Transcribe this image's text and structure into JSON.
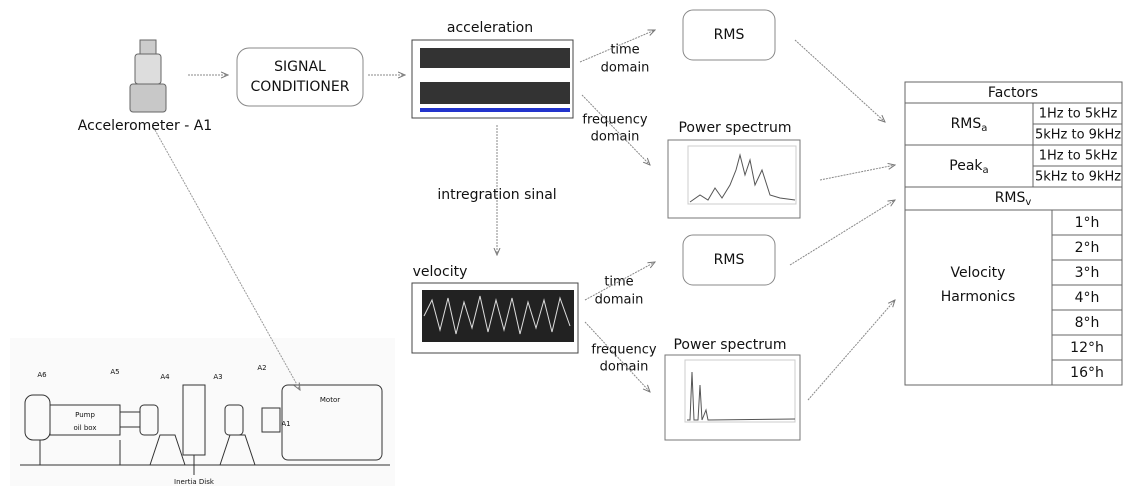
{
  "sensor": {
    "label": "Accelerometer - A1"
  },
  "conditioner": {
    "lines": [
      "SIGNAL",
      "CONDITIONER"
    ]
  },
  "acceleration": {
    "label": "acceleration",
    "time_domain": [
      "time",
      "domain"
    ],
    "frequency_domain": [
      "frequency",
      "domain"
    ],
    "rms": "RMS",
    "spectrum": "Power spectrum"
  },
  "integration": "intregration sinal",
  "velocity": {
    "label": "velocity",
    "time_domain": [
      "time",
      "domain"
    ],
    "frequency_domain": [
      "frequency",
      "domain"
    ],
    "rms": "RMS",
    "spectrum": "Power spectrum"
  },
  "machine": {
    "labels": [
      "A6",
      "A5",
      "A4",
      "A3",
      "A2",
      "A1",
      "Motor",
      "Pump",
      "oil box",
      "Inertia Disk"
    ]
  },
  "table": {
    "header": "Factors",
    "rms_a": {
      "main": "RMS",
      "sub": "a",
      "bands": [
        "1Hz to 5kHz",
        "5kHz to 9kHz"
      ]
    },
    "peak_a": {
      "main": "Peak",
      "sub": "a",
      "bands": [
        "1Hz to 5kHz",
        "5kHz to 9kHz"
      ]
    },
    "rms_v": {
      "main": "RMS",
      "sub": "v"
    },
    "harmonics": {
      "label": [
        "Velocity",
        "Harmonics"
      ],
      "orders": [
        "1°h",
        "2°h",
        "3°h",
        "4°h",
        "8°h",
        "12°h",
        "16°h"
      ]
    }
  }
}
